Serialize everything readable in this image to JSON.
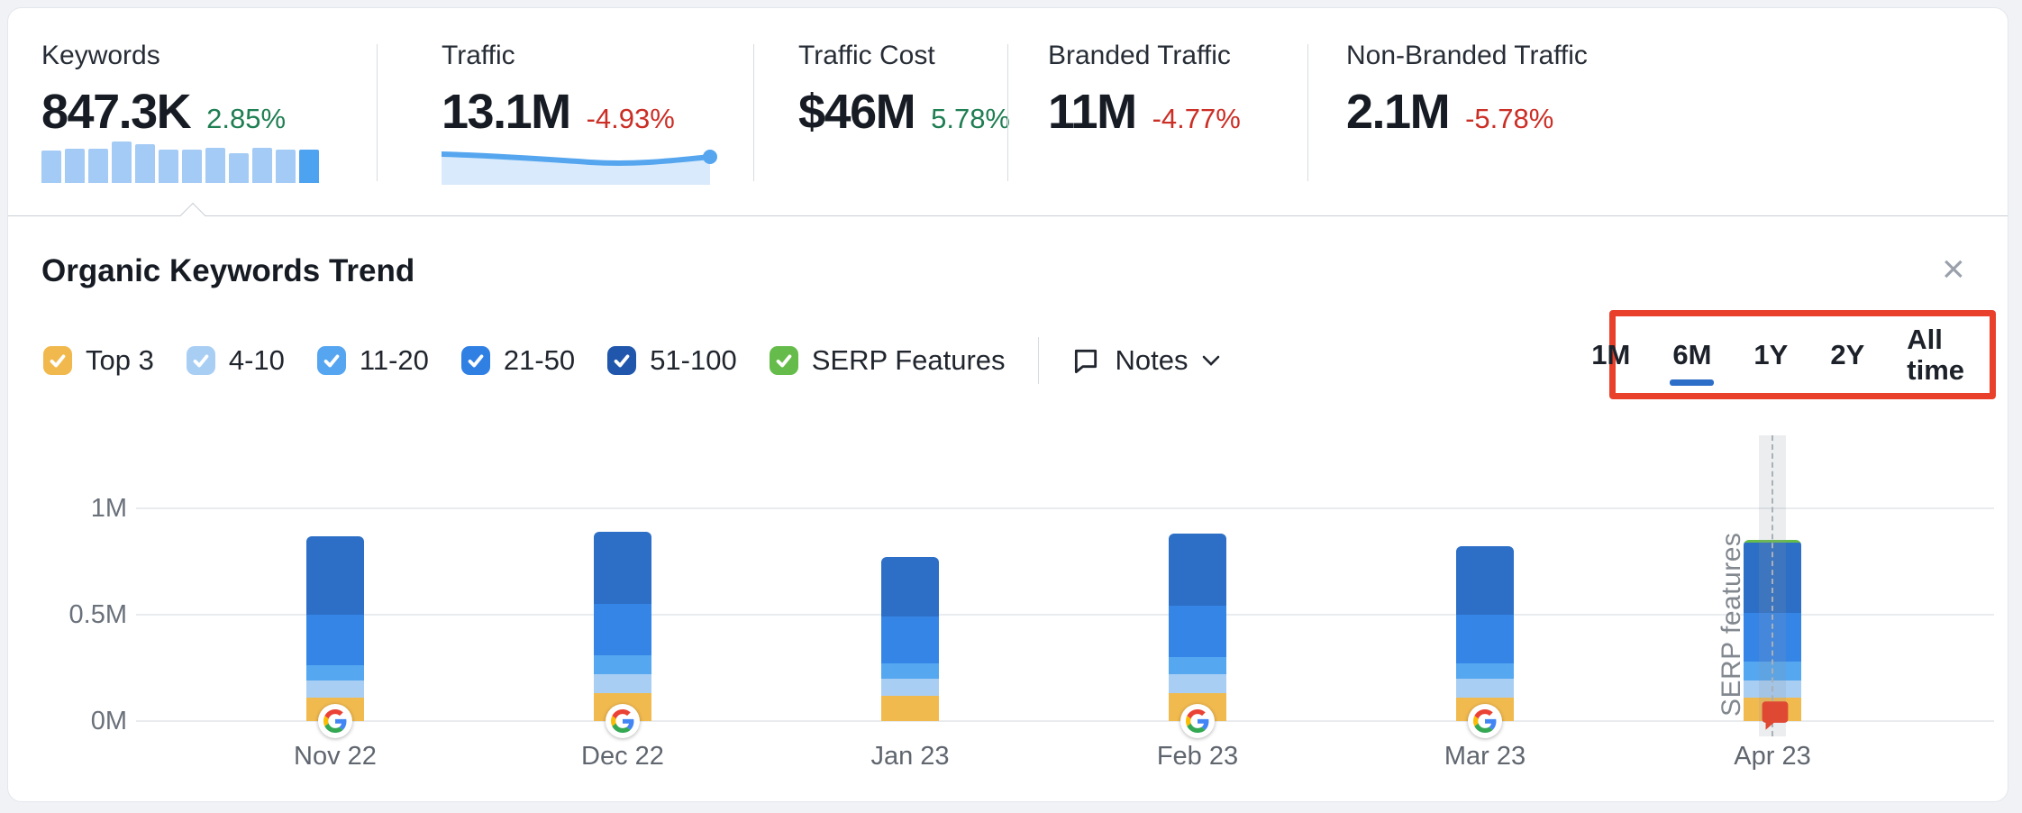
{
  "page": {
    "background": "#f0f2f6",
    "card_background": "#ffffff"
  },
  "stats_strip": {
    "selected": "Keywords",
    "items": [
      {
        "label": "Keywords",
        "value": "847.3K",
        "change": "2.85%",
        "trend": "up",
        "sparkline": {
          "type": "bars",
          "bar_color": "#A3CBF5",
          "last_bar_color": "#4EA3F0",
          "relative_heights": [
            0.78,
            0.82,
            0.82,
            1.0,
            0.94,
            0.8,
            0.8,
            0.85,
            0.72,
            0.84,
            0.8,
            0.8
          ]
        }
      },
      {
        "label": "Traffic",
        "value": "13.1M",
        "change": "-4.93%",
        "trend": "down",
        "sparkline": {
          "type": "area",
          "line_color": "#55A6EF",
          "fill_color": "#D8EAFB"
        }
      },
      {
        "label": "Traffic Cost",
        "value": "$46M",
        "change": "5.78%",
        "trend": "up"
      },
      {
        "label": "Branded Traffic",
        "value": "11M",
        "change": "-4.77%",
        "trend": "down"
      },
      {
        "label": "Non-Branded Traffic",
        "value": "2.1M",
        "change": "-5.78%",
        "trend": "down"
      }
    ],
    "up_color": "#1e7e52",
    "down_color": "#cb2e25"
  },
  "panel": {
    "title": "Organic Keywords Trend",
    "close_icon": "×",
    "filters": [
      {
        "label": "Top 3",
        "checked": true,
        "color": "#F1B94D"
      },
      {
        "label": "4-10",
        "checked": true,
        "color": "#A9CEF4"
      },
      {
        "label": "11-20",
        "checked": true,
        "color": "#55A5F0"
      },
      {
        "label": "21-50",
        "checked": true,
        "color": "#3080E4"
      },
      {
        "label": "51-100",
        "checked": true,
        "color": "#2057AC"
      },
      {
        "label": "SERP Features",
        "checked": true,
        "color": "#66BC4B"
      }
    ],
    "notes": {
      "label": "Notes",
      "icon": "speech-bubble-icon",
      "chevron": "chevron-down-icon"
    },
    "time_ranges": {
      "options": [
        "1M",
        "6M",
        "1Y",
        "2Y",
        "All time"
      ],
      "selected": "6M",
      "underline_color": "#2D6EC8",
      "annotation_box_color": "#E8402B"
    }
  },
  "chart_data": {
    "type": "bar",
    "stacked": true,
    "title": "Organic Keywords Trend",
    "categories": [
      "Nov 22",
      "Dec 22",
      "Jan 23",
      "Feb 23",
      "Mar 23",
      "Apr 23"
    ],
    "series": [
      {
        "name": "Top 3",
        "color": "#F1BA4F",
        "values": [
          0.11,
          0.13,
          0.12,
          0.13,
          0.11,
          0.11
        ]
      },
      {
        "name": "4-10",
        "color": "#A9CEF3",
        "values": [
          0.08,
          0.09,
          0.08,
          0.09,
          0.09,
          0.08
        ]
      },
      {
        "name": "11-20",
        "color": "#55A7F0",
        "values": [
          0.07,
          0.09,
          0.07,
          0.08,
          0.07,
          0.09
        ]
      },
      {
        "name": "21-50",
        "color": "#3585E7",
        "values": [
          0.24,
          0.24,
          0.22,
          0.24,
          0.23,
          0.23
        ]
      },
      {
        "name": "51-100",
        "color": "#2D6FC6",
        "values": [
          0.37,
          0.34,
          0.28,
          0.34,
          0.32,
          0.33
        ]
      },
      {
        "name": "SERP Features",
        "color": "#66BC4B",
        "values": [
          0,
          0,
          0,
          0,
          0,
          0.012
        ]
      }
    ],
    "totals_M": [
      0.87,
      0.89,
      0.77,
      0.88,
      0.82,
      0.85
    ],
    "yticks": [
      {
        "label": "1M",
        "value": 1
      },
      {
        "label": "0.5M",
        "value": 0.5
      },
      {
        "label": "0M",
        "value": 0
      }
    ],
    "ylim": [
      0,
      1.15
    ],
    "ylabel": "",
    "xlabel": "",
    "grid": "horizontal",
    "legend_position": "filters-row-above-chart",
    "google_icon_categories": [
      "Nov 22",
      "Dec 22",
      "Feb 23",
      "Mar 23"
    ],
    "annotation": {
      "category": "Apr 23",
      "label": "SERP features",
      "marker": "red-flag-marker"
    }
  }
}
